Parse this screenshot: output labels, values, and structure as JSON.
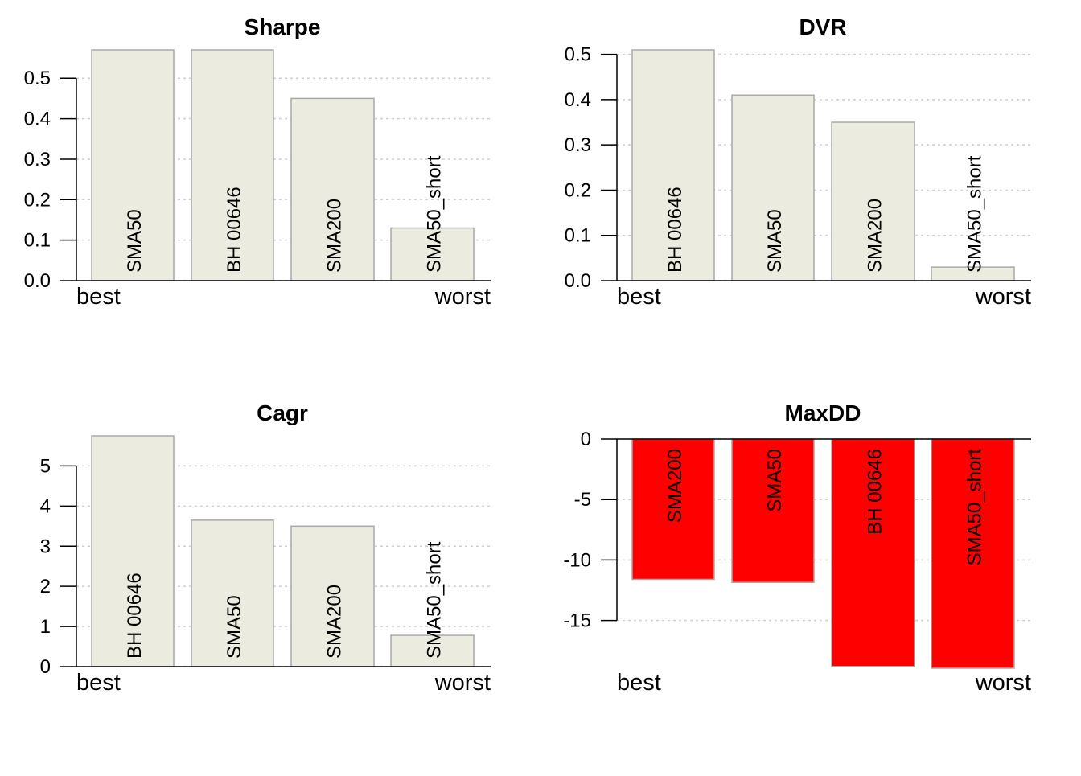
{
  "chart_data": [
    {
      "type": "bar",
      "title": "Sharpe",
      "categories": [
        "SMA50",
        "BH 00646",
        "SMA200",
        "SMA50_short"
      ],
      "values": [
        0.57,
        0.57,
        0.45,
        0.13
      ],
      "ylim": [
        0,
        0.57
      ],
      "yticks": [
        0.0,
        0.1,
        0.2,
        0.3,
        0.4,
        0.5
      ],
      "ytick_labels": [
        "0.0",
        "0.1",
        "0.2",
        "0.3",
        "0.4",
        "0.5"
      ],
      "left_label": "best",
      "right_label": "worst",
      "bar_color": "#ebebdf",
      "grid": true
    },
    {
      "type": "bar",
      "title": "DVR",
      "categories": [
        "BH 00646",
        "SMA50",
        "SMA200",
        "SMA50_short"
      ],
      "values": [
        0.51,
        0.41,
        0.35,
        0.03
      ],
      "ylim": [
        0,
        0.51
      ],
      "yticks": [
        0.0,
        0.1,
        0.2,
        0.3,
        0.4,
        0.5
      ],
      "ytick_labels": [
        "0.0",
        "0.1",
        "0.2",
        "0.3",
        "0.4",
        "0.5"
      ],
      "left_label": "best",
      "right_label": "worst",
      "bar_color": "#ebebdf",
      "grid": true
    },
    {
      "type": "bar",
      "title": "Cagr",
      "categories": [
        "BH 00646",
        "SMA50",
        "SMA200",
        "SMA50_short"
      ],
      "values": [
        5.75,
        3.65,
        3.5,
        0.78
      ],
      "ylim": [
        0,
        5.75
      ],
      "yticks": [
        0,
        1,
        2,
        3,
        4,
        5
      ],
      "ytick_labels": [
        "0",
        "1",
        "2",
        "3",
        "4",
        "5"
      ],
      "left_label": "best",
      "right_label": "worst",
      "bar_color": "#ebebdf",
      "grid": true
    },
    {
      "type": "bar",
      "title": "MaxDD",
      "categories": [
        "SMA200",
        "SMA50",
        "BH 00646",
        "SMA50_short"
      ],
      "values": [
        -11.6,
        -11.85,
        -18.8,
        -18.95
      ],
      "ylim": [
        -18.95,
        0
      ],
      "yticks": [
        0,
        -5,
        -10,
        -15
      ],
      "ytick_labels": [
        "0",
        "-5",
        "-10",
        "-15"
      ],
      "left_label": "best",
      "right_label": "worst",
      "bar_color": "#ff0000",
      "grid": true
    }
  ]
}
